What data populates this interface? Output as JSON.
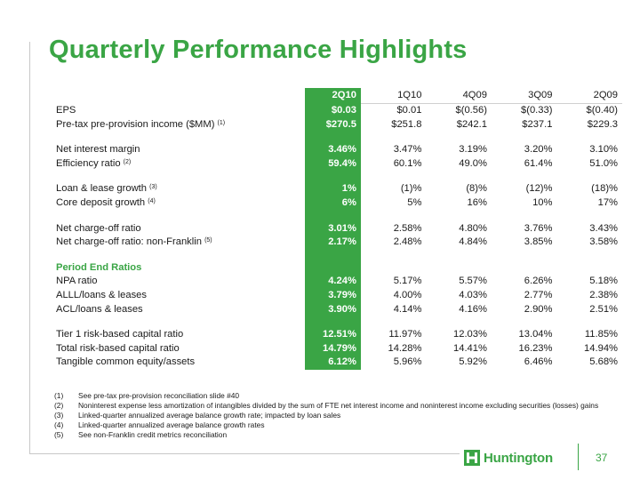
{
  "title": "Quarterly Performance Highlights",
  "columns": [
    "2Q10",
    "1Q10",
    "4Q09",
    "3Q09",
    "2Q09"
  ],
  "rows": [
    {
      "label": "EPS",
      "note": "",
      "values": [
        "$0.03",
        "$0.01",
        "$(0.56)",
        "$(0.33)",
        "$(0.40)"
      ]
    },
    {
      "label": "Pre-tax pre-provision income ($MM)",
      "note": "(1)",
      "values": [
        "$270.5",
        "$251.8",
        "$242.1",
        "$237.1",
        "$229.3"
      ]
    },
    {
      "label": "Net interest margin",
      "note": "",
      "values": [
        "3.46%",
        "3.47%",
        "3.19%",
        "3.20%",
        "3.10%"
      ]
    },
    {
      "label": "Efficiency ratio",
      "note": "(2)",
      "values": [
        "59.4%",
        "60.1%",
        "49.0%",
        "61.4%",
        "51.0%"
      ]
    },
    {
      "label": "Loan & lease growth",
      "note": "(3)",
      "values": [
        "1%",
        "(1)%",
        "(8)%",
        "(12)%",
        "(18)%"
      ]
    },
    {
      "label": "Core deposit growth",
      "note": "(4)",
      "values": [
        "6%",
        "5%",
        "16%",
        "10%",
        "17%"
      ]
    },
    {
      "label": "Net charge-off ratio",
      "note": "",
      "values": [
        "3.01%",
        "2.58%",
        "4.80%",
        "3.76%",
        "3.43%"
      ]
    },
    {
      "label": "Net charge-off ratio: non-Franklin",
      "note": "(5)",
      "values": [
        "2.17%",
        "2.48%",
        "4.84%",
        "3.85%",
        "3.58%"
      ]
    },
    {
      "label": "Period End Ratios",
      "note": "",
      "values": [
        "",
        "",
        "",
        "",
        ""
      ]
    },
    {
      "label": "NPA ratio",
      "note": "",
      "values": [
        "4.24%",
        "5.17%",
        "5.57%",
        "6.26%",
        "5.18%"
      ]
    },
    {
      "label": "ALLL/loans & leases",
      "note": "",
      "values": [
        "3.79%",
        "4.00%",
        "4.03%",
        "2.77%",
        "2.38%"
      ]
    },
    {
      "label": "ACL/loans & leases",
      "note": "",
      "values": [
        "3.90%",
        "4.14%",
        "4.16%",
        "2.90%",
        "2.51%"
      ]
    },
    {
      "label": "Tier 1 risk-based capital ratio",
      "note": "",
      "values": [
        "12.51%",
        "11.97%",
        "12.03%",
        "13.04%",
        "11.85%"
      ]
    },
    {
      "label": "Total risk-based capital ratio",
      "note": "",
      "values": [
        "14.79%",
        "14.28%",
        "14.41%",
        "16.23%",
        "14.94%"
      ]
    },
    {
      "label": "Tangible common equity/assets",
      "note": "",
      "values": [
        "6.12%",
        "5.96%",
        "5.92%",
        "6.46%",
        "5.68%"
      ]
    }
  ],
  "footnotes": [
    {
      "id": "(1)",
      "text": "See pre-tax pre-provision reconciliation slide #40"
    },
    {
      "id": "(2)",
      "text": "Noninterest expense less amortization of intangibles divided by the sum of FTE net interest income and noninterest income excluding securities (losses) gains"
    },
    {
      "id": "(3)",
      "text": "Linked-quarter annualized average balance growth rate; impacted by loan sales"
    },
    {
      "id": "(4)",
      "text": "Linked-quarter annualized average balance growth rates"
    },
    {
      "id": "(5)",
      "text": "See non-Franklin credit metrics reconciliation"
    }
  ],
  "logo_text": "Huntington",
  "page_number": "37",
  "colors": {
    "brand_green": "#3aa545"
  }
}
